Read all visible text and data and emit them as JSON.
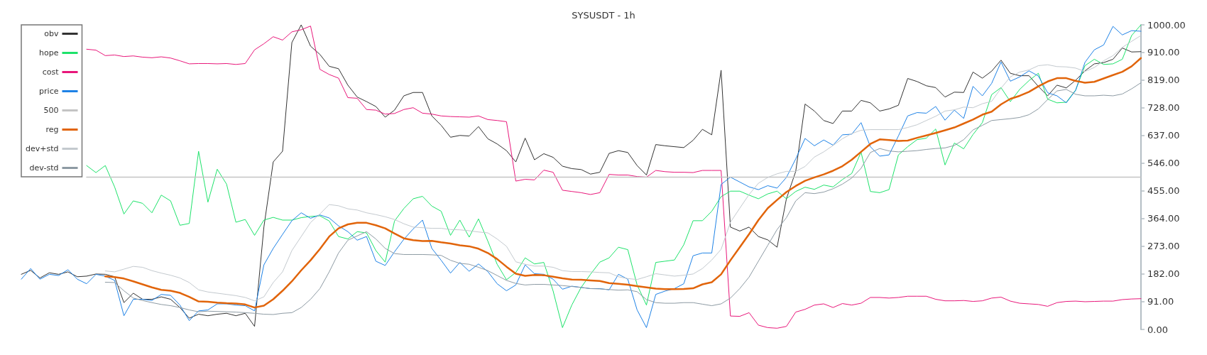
{
  "chart_data": {
    "type": "line",
    "title": "SYSUSDT - 1h",
    "categories": [
      null,
      null,
      null,
      null,
      null,
      null,
      null,
      null,
      null,
      null,
      null,
      null,
      null,
      null,
      null,
      null,
      null,
      null,
      null,
      null,
      null,
      null,
      null,
      null,
      null,
      null,
      null,
      null,
      null,
      null,
      null,
      null,
      null,
      null,
      null,
      null,
      null,
      null,
      null,
      null,
      null,
      null,
      null,
      null,
      null,
      null,
      null,
      null,
      null,
      null,
      null,
      null,
      null,
      null,
      null,
      null,
      null,
      null,
      null,
      null,
      null,
      null,
      null,
      null,
      null,
      null,
      null,
      null,
      null,
      null,
      null,
      null,
      null,
      null,
      null,
      null,
      null,
      null,
      null,
      null,
      null,
      null,
      null,
      null,
      null,
      null,
      null,
      null,
      null,
      null,
      null,
      null,
      null,
      null,
      null,
      null,
      null,
      null,
      null,
      null,
      null,
      null,
      null,
      null,
      null,
      null,
      null,
      null,
      null,
      null,
      null,
      null,
      null,
      null,
      null,
      null,
      null,
      null,
      null,
      null,
      null
    ],
    "series": [
      {
        "name": "obv",
        "color": "#333333",
        "values": [
          181,
          194,
          169,
          186,
          181,
          189,
          173,
          175,
          182,
          181,
          173,
          88,
          119,
          99,
          99,
          107,
          99,
          72,
          37,
          50,
          45,
          50,
          53,
          45,
          53,
          10,
          336,
          550,
          585,
          942,
          1000,
          930,
          903,
          864,
          856,
          802,
          763,
          748,
          732,
          697,
          720,
          767,
          778,
          778,
          701,
          670,
          631,
          637,
          635,
          666,
          626,
          609,
          587,
          550,
          628,
          557,
          577,
          565,
          536,
          528,
          525,
          510,
          516,
          578,
          587,
          581,
          538,
          507,
          607,
          603,
          600,
          597,
          621,
          657,
          639,
          851,
          336,
          323,
          336,
          305,
          294,
          270,
          429,
          519,
          740,
          717,
          686,
          676,
          717,
          717,
          752,
          744,
          717,
          724,
          736,
          824,
          814,
          800,
          794,
          763,
          779,
          778,
          845,
          825,
          848,
          884,
          841,
          833,
          833,
          798,
          767,
          802,
          793,
          818,
          849,
          872,
          876,
          887,
          924,
          911,
          912
        ]
      },
      {
        "name": "hope",
        "color": "#1de26a",
        "values": [
          null,
          null,
          null,
          null,
          null,
          null,
          null,
          538,
          515,
          538,
          468,
          379,
          422,
          414,
          383,
          441,
          422,
          342,
          348,
          585,
          418,
          526,
          477,
          352,
          361,
          309,
          359,
          368,
          359,
          359,
          367,
          371,
          373,
          356,
          305,
          297,
          321,
          317,
          259,
          221,
          356,
          397,
          429,
          437,
          405,
          388,
          309,
          359,
          303,
          363,
          290,
          214,
          163,
          187,
          235,
          215,
          220,
          126,
          6,
          80,
          138,
          181,
          221,
          235,
          270,
          262,
          146,
          80,
          220,
          224,
          228,
          278,
          357,
          357,
          388,
          436,
          454,
          454,
          441,
          429,
          445,
          454,
          429,
          453,
          467,
          460,
          474,
          468,
          492,
          512,
          582,
          453,
          449,
          459,
          573,
          600,
          623,
          628,
          658,
          540,
          612,
          593,
          640,
          679,
          771,
          794,
          748,
          788,
          817,
          841,
          756,
          744,
          746,
          786,
          866,
          887,
          870,
          872,
          887,
          965,
          1000
        ]
      },
      {
        "name": "cost",
        "color": "#e8177a",
        "values": [
          null,
          null,
          null,
          null,
          null,
          null,
          null,
          920,
          917,
          899,
          901,
          896,
          898,
          894,
          892,
          895,
          891,
          882,
          872,
          873,
          873,
          872,
          873,
          870,
          873,
          918,
          938,
          961,
          950,
          977,
          984,
          996,
          854,
          837,
          825,
          761,
          759,
          722,
          720,
          707,
          709,
          722,
          728,
          710,
          707,
          701,
          699,
          698,
          697,
          701,
          689,
          686,
          682,
          487,
          493,
          491,
          523,
          516,
          457,
          453,
          449,
          443,
          449,
          509,
          507,
          507,
          502,
          500,
          522,
          518,
          516,
          516,
          515,
          522,
          522,
          522,
          44,
          43,
          55,
          14,
          6,
          4,
          10,
          57,
          66,
          80,
          84,
          72,
          85,
          80,
          86,
          105,
          105,
          103,
          105,
          109,
          109,
          109,
          99,
          94,
          94,
          95,
          92,
          94,
          103,
          106,
          93,
          86,
          84,
          82,
          76,
          88,
          92,
          93,
          91,
          92,
          93,
          93,
          98,
          100,
          101
        ]
      },
      {
        "name": "price",
        "color": "#1e82e6",
        "values": [
          165,
          200,
          165,
          181,
          177,
          196,
          165,
          150,
          181,
          175,
          161,
          45,
          99,
          99,
          95,
          115,
          112,
          80,
          29,
          61,
          64,
          84,
          84,
          80,
          78,
          61,
          212,
          266,
          312,
          357,
          383,
          365,
          376,
          366,
          340,
          321,
          293,
          305,
          224,
          210,
          255,
          296,
          330,
          359,
          266,
          227,
          185,
          220,
          191,
          215,
          190,
          150,
          127,
          146,
          212,
          183,
          181,
          165,
          132,
          142,
          138,
          134,
          134,
          130,
          181,
          165,
          64,
          6,
          115,
          126,
          134,
          150,
          242,
          251,
          251,
          476,
          500,
          484,
          468,
          459,
          472,
          464,
          499,
          560,
          627,
          603,
          622,
          605,
          639,
          641,
          679,
          600,
          569,
          573,
          635,
          701,
          712,
          710,
          732,
          687,
          720,
          693,
          798,
          767,
          808,
          878,
          815,
          829,
          849,
          832,
          777,
          767,
          744,
          785,
          877,
          918,
          934,
          995,
          967,
          981,
          979
        ]
      },
      {
        "name": "500",
        "color": "#c4c4c4",
        "values": [
          null,
          null,
          null,
          null,
          null,
          null,
          null,
          500,
          500,
          500,
          500,
          500,
          500,
          500,
          500,
          500,
          500,
          500,
          500,
          500,
          500,
          500,
          500,
          500,
          500,
          500,
          500,
          500,
          500,
          500,
          500,
          500,
          500,
          500,
          500,
          500,
          500,
          500,
          500,
          500,
          500,
          500,
          500,
          500,
          500,
          500,
          500,
          500,
          500,
          500,
          500,
          500,
          500,
          500,
          500,
          500,
          500,
          500,
          500,
          500,
          500,
          500,
          500,
          500,
          500,
          500,
          500,
          500,
          500,
          500,
          500,
          500,
          500,
          500,
          500,
          500,
          500,
          500,
          500,
          500,
          500,
          500,
          500,
          500,
          500,
          500,
          500,
          500,
          500,
          500,
          500,
          500,
          500,
          500,
          500,
          500,
          500,
          500,
          500,
          500,
          500,
          500,
          500,
          500,
          500,
          500,
          500,
          500,
          500,
          500,
          500,
          500,
          500,
          500,
          500,
          500,
          500,
          500,
          500,
          500,
          500
        ]
      },
      {
        "name": "reg",
        "color": "#e1640a",
        "values": [
          null,
          null,
          null,
          null,
          null,
          null,
          null,
          null,
          null,
          174,
          172,
          167,
          158,
          148,
          138,
          130,
          127,
          120,
          107,
          92,
          91,
          88,
          86,
          85,
          82,
          72,
          78,
          99,
          127,
          158,
          194,
          227,
          264,
          305,
          332,
          345,
          350,
          350,
          342,
          332,
          315,
          299,
          293,
          290,
          291,
          286,
          282,
          276,
          273,
          265,
          251,
          231,
          206,
          183,
          176,
          179,
          178,
          173,
          168,
          164,
          163,
          161,
          159,
          152,
          150,
          147,
          142,
          138,
          134,
          132,
          132,
          133,
          135,
          148,
          155,
          181,
          227,
          270,
          313,
          359,
          398,
          425,
          451,
          471,
          488,
          499,
          509,
          521,
          536,
          557,
          583,
          609,
          624,
          622,
          619,
          620,
          629,
          637,
          645,
          654,
          663,
          676,
          689,
          705,
          715,
          739,
          757,
          767,
          780,
          798,
          814,
          825,
          825,
          816,
          810,
          813,
          824,
          835,
          846,
          864,
          891
        ]
      },
      {
        "name": "dev+std",
        "color": "#c3c9ce",
        "values": [
          null,
          null,
          null,
          null,
          null,
          null,
          null,
          null,
          null,
          192,
          189,
          198,
          207,
          204,
          193,
          185,
          178,
          169,
          154,
          130,
          123,
          119,
          115,
          111,
          105,
          94,
          107,
          154,
          189,
          259,
          305,
          351,
          379,
          410,
          406,
          396,
          392,
          383,
          377,
          370,
          361,
          347,
          336,
          334,
          332,
          332,
          328,
          327,
          324,
          320,
          317,
          297,
          273,
          222,
          214,
          208,
          208,
          204,
          193,
          190,
          190,
          189,
          187,
          186,
          173,
          167,
          164,
          173,
          183,
          179,
          175,
          178,
          182,
          200,
          228,
          263,
          352,
          398,
          443,
          480,
          499,
          511,
          519,
          519,
          535,
          566,
          583,
          604,
          626,
          643,
          654,
          656,
          656,
          656,
          656,
          663,
          672,
          686,
          700,
          717,
          721,
          730,
          728,
          741,
          749,
          792,
          829,
          845,
          852,
          866,
          869,
          863,
          862,
          858,
          847,
          860,
          882,
          899,
          926,
          946,
          965
        ]
      },
      {
        "name": "dev-std",
        "color": "#8d9aa3",
        "values": [
          null,
          null,
          null,
          null,
          null,
          null,
          null,
          null,
          null,
          155,
          154,
          127,
          103,
          95,
          88,
          82,
          78,
          72,
          64,
          58,
          60,
          59,
          58,
          57,
          55,
          53,
          50,
          49,
          53,
          55,
          72,
          99,
          134,
          189,
          251,
          293,
          307,
          321,
          297,
          266,
          249,
          246,
          246,
          246,
          245,
          243,
          227,
          217,
          214,
          204,
          193,
          177,
          161,
          151,
          146,
          148,
          148,
          146,
          144,
          141,
          138,
          134,
          133,
          131,
          129,
          130,
          124,
          98,
          88,
          86,
          86,
          88,
          88,
          83,
          78,
          84,
          103,
          134,
          172,
          224,
          276,
          328,
          367,
          422,
          449,
          446,
          451,
          462,
          477,
          497,
          529,
          581,
          594,
          586,
          583,
          585,
          587,
          591,
          594,
          596,
          604,
          623,
          655,
          670,
          686,
          689,
          692,
          696,
          705,
          724,
          755,
          783,
          788,
          772,
          767,
          767,
          769,
          767,
          773,
          790,
          810
        ]
      }
    ],
    "ylim": [
      0,
      1000
    ],
    "yticks": [
      {
        "value": 0,
        "label": "0.00"
      },
      {
        "value": 91,
        "label": "91.00"
      },
      {
        "value": 182,
        "label": "182.00"
      },
      {
        "value": 273,
        "label": "273.00"
      },
      {
        "value": 364,
        "label": "364.00"
      },
      {
        "value": 455,
        "label": "455.00"
      },
      {
        "value": 546,
        "label": "546.00"
      },
      {
        "value": 637,
        "label": "637.00"
      },
      {
        "value": 728,
        "label": "728.00"
      },
      {
        "value": 819,
        "label": "819.00"
      },
      {
        "value": 910,
        "label": "910.00"
      },
      {
        "value": 1000,
        "label": "1000.00"
      }
    ],
    "legend": "top left",
    "tick_labels": "y",
    "marker": "none"
  }
}
